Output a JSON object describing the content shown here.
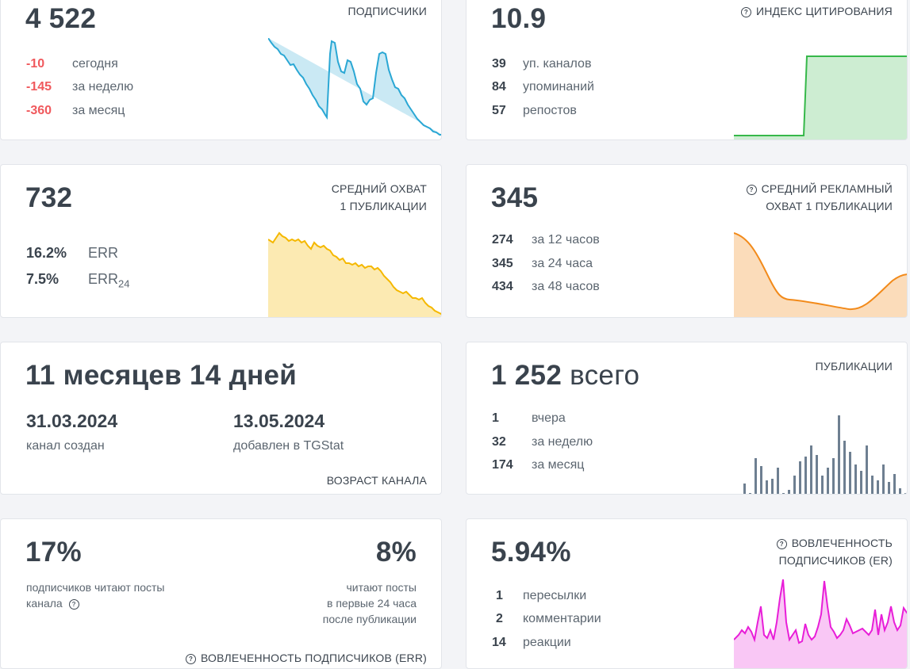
{
  "subscribers": {
    "value": "4 522",
    "title": "ПОДПИСЧИКИ",
    "stats": [
      {
        "n": "-10",
        "t": "сегодня"
      },
      {
        "n": "-145",
        "t": "за неделю"
      },
      {
        "n": "-360",
        "t": "за месяц"
      }
    ],
    "color": "#2aa7d4"
  },
  "citation": {
    "value": "10.9",
    "title": "ИНДЕКС ЦИТИРОВАНИЯ",
    "stats": [
      {
        "n": "39",
        "t": "уп. каналов"
      },
      {
        "n": "84",
        "t": "упоминаний"
      },
      {
        "n": "57",
        "t": "репостов"
      }
    ],
    "color": "#36b84a"
  },
  "avg_reach": {
    "value": "732",
    "title_1": "СРЕДНИЙ ОХВАТ",
    "title_2": "1 ПУБЛИКАЦИИ",
    "err_value": "16.2%",
    "err_label": "ERR",
    "err24_value": "7.5%",
    "err24_label": "ERR",
    "err24_sub": "24",
    "color": "#f5b800"
  },
  "ad_reach": {
    "value": "345",
    "title_1": "СРЕДНИЙ РЕКЛАМНЫЙ",
    "title_2": "ОХВАТ 1 ПУБЛИКАЦИИ",
    "stats": [
      {
        "n": "274",
        "t": "за 12 часов"
      },
      {
        "n": "345",
        "t": "за 24 часа"
      },
      {
        "n": "434",
        "t": "за 48 часов"
      }
    ],
    "color": "#f28a1a"
  },
  "age": {
    "value": "11 месяцев 14 дней",
    "created_date": "31.03.2024",
    "created_label": "канал создан",
    "added_date": "13.05.2024",
    "added_label": "добавлен в TGStat",
    "title": "ВОЗРАСТ КАНАЛА"
  },
  "publications": {
    "value": "1 252",
    "unit": "всего",
    "title": "ПУБЛИКАЦИИ",
    "stats": [
      {
        "n": "1",
        "t": "вчера"
      },
      {
        "n": "32",
        "t": "за неделю"
      },
      {
        "n": "174",
        "t": "за месяц"
      }
    ],
    "color": "#6e7f91"
  },
  "err_card": {
    "value_left": "17%",
    "text_left_1": "подписчиков читают посты",
    "text_left_2": "канала",
    "value_right": "8%",
    "text_right_1": "читают посты",
    "text_right_2": "в первые 24 часа",
    "text_right_3": "после публикации",
    "title": "ВОВЛЕЧЕННОСТЬ ПОДПИСЧИКОВ (ERR)"
  },
  "er_card": {
    "value": "5.94%",
    "title_1": "ВОВЛЕЧЕННОСТЬ",
    "title_2": "ПОДПИСЧИКОВ (ER)",
    "stats": [
      {
        "n": "1",
        "t": "пересылки"
      },
      {
        "n": "2",
        "t": "комментарии"
      },
      {
        "n": "14",
        "t": "реакции"
      }
    ],
    "color": "#e81ed8"
  },
  "icons": {
    "help": "?"
  }
}
